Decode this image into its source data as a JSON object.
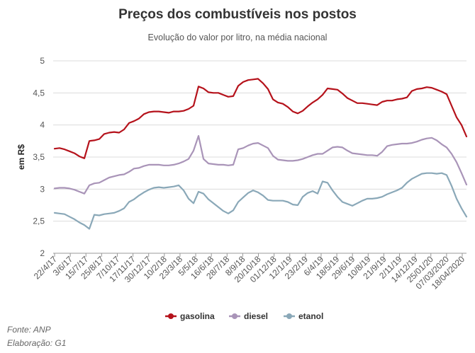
{
  "chart_data": {
    "type": "line",
    "title": "Preços dos combustíveis nos postos",
    "subtitle": "Evolução do valor por litro, na média nacional",
    "ylabel": "em R$",
    "ylim": [
      2,
      5
    ],
    "yticks": [
      "2",
      "2,5",
      "3",
      "3,5",
      "4",
      "4,5",
      "5"
    ],
    "ytick_values": [
      2,
      2.5,
      3,
      3.5,
      4,
      4.5,
      5
    ],
    "xticks": [
      "22/4/17",
      "3/6/17",
      "15/7/17",
      "25/8/17",
      "7/10/17",
      "17/11/17",
      "30/12/17",
      "10/2/18",
      "23/3/18",
      "5/5/18",
      "16/6/18",
      "28/7/18",
      "8/9/18",
      "20/10/18",
      "01/12/18",
      "12/1/19",
      "23/2/19",
      "6/4/19",
      "18/5/19",
      "29/6/19",
      "10/8/19",
      "21/9/19",
      "2/11/19",
      "14/12/19",
      "25/01/20",
      "07/03/2020",
      "18/04/2020"
    ],
    "grid": true,
    "legend_position": "bottom",
    "series": [
      {
        "name": "gasolina",
        "color": "#b5121b",
        "values": [
          3.63,
          3.64,
          3.62,
          3.59,
          3.56,
          3.51,
          3.48,
          3.75,
          3.76,
          3.78,
          3.86,
          3.88,
          3.89,
          3.88,
          3.93,
          4.03,
          4.06,
          4.1,
          4.17,
          4.2,
          4.21,
          4.21,
          4.2,
          4.19,
          4.21,
          4.21,
          4.22,
          4.25,
          4.3,
          4.6,
          4.57,
          4.51,
          4.5,
          4.5,
          4.47,
          4.44,
          4.45,
          4.61,
          4.67,
          4.7,
          4.71,
          4.72,
          4.65,
          4.56,
          4.4,
          4.35,
          4.33,
          4.28,
          4.21,
          4.18,
          4.22,
          4.29,
          4.35,
          4.4,
          4.47,
          4.57,
          4.56,
          4.55,
          4.49,
          4.42,
          4.38,
          4.34,
          4.34,
          4.33,
          4.32,
          4.31,
          4.36,
          4.38,
          4.38,
          4.4,
          4.41,
          4.43,
          4.53,
          4.56,
          4.57,
          4.59,
          4.58,
          4.55,
          4.52,
          4.48,
          4.3,
          4.12,
          4.0,
          3.82
        ]
      },
      {
        "name": "diesel",
        "color": "#a994b8",
        "values": [
          3.01,
          3.02,
          3.02,
          3.01,
          2.99,
          2.96,
          2.93,
          3.06,
          3.09,
          3.1,
          3.14,
          3.18,
          3.2,
          3.22,
          3.23,
          3.27,
          3.32,
          3.33,
          3.36,
          3.38,
          3.38,
          3.38,
          3.37,
          3.37,
          3.38,
          3.4,
          3.43,
          3.47,
          3.6,
          3.83,
          3.47,
          3.4,
          3.39,
          3.38,
          3.38,
          3.37,
          3.38,
          3.62,
          3.64,
          3.68,
          3.71,
          3.72,
          3.68,
          3.64,
          3.52,
          3.46,
          3.45,
          3.44,
          3.44,
          3.45,
          3.47,
          3.5,
          3.53,
          3.55,
          3.55,
          3.6,
          3.65,
          3.66,
          3.65,
          3.6,
          3.56,
          3.55,
          3.54,
          3.53,
          3.53,
          3.52,
          3.58,
          3.67,
          3.69,
          3.7,
          3.71,
          3.71,
          3.72,
          3.74,
          3.77,
          3.79,
          3.8,
          3.76,
          3.7,
          3.65,
          3.55,
          3.42,
          3.25,
          3.07
        ]
      },
      {
        "name": "etanol",
        "color": "#8aa8b8",
        "values": [
          2.63,
          2.62,
          2.61,
          2.57,
          2.53,
          2.48,
          2.44,
          2.38,
          2.6,
          2.59,
          2.61,
          2.62,
          2.63,
          2.66,
          2.7,
          2.8,
          2.84,
          2.9,
          2.95,
          2.99,
          3.02,
          3.03,
          3.02,
          3.03,
          3.04,
          3.06,
          2.98,
          2.85,
          2.78,
          2.96,
          2.93,
          2.84,
          2.78,
          2.72,
          2.66,
          2.62,
          2.67,
          2.8,
          2.87,
          2.94,
          2.98,
          2.95,
          2.9,
          2.83,
          2.82,
          2.82,
          2.82,
          2.8,
          2.76,
          2.75,
          2.88,
          2.94,
          2.97,
          2.93,
          3.12,
          3.1,
          2.98,
          2.88,
          2.8,
          2.77,
          2.74,
          2.78,
          2.82,
          2.85,
          2.85,
          2.86,
          2.88,
          2.92,
          2.95,
          2.98,
          3.02,
          3.1,
          3.16,
          3.2,
          3.24,
          3.25,
          3.25,
          3.24,
          3.25,
          3.22,
          3.05,
          2.85,
          2.7,
          2.57
        ]
      }
    ]
  },
  "footer": {
    "source": "Fonte: ANP",
    "credit": "Elaboração: G1"
  }
}
